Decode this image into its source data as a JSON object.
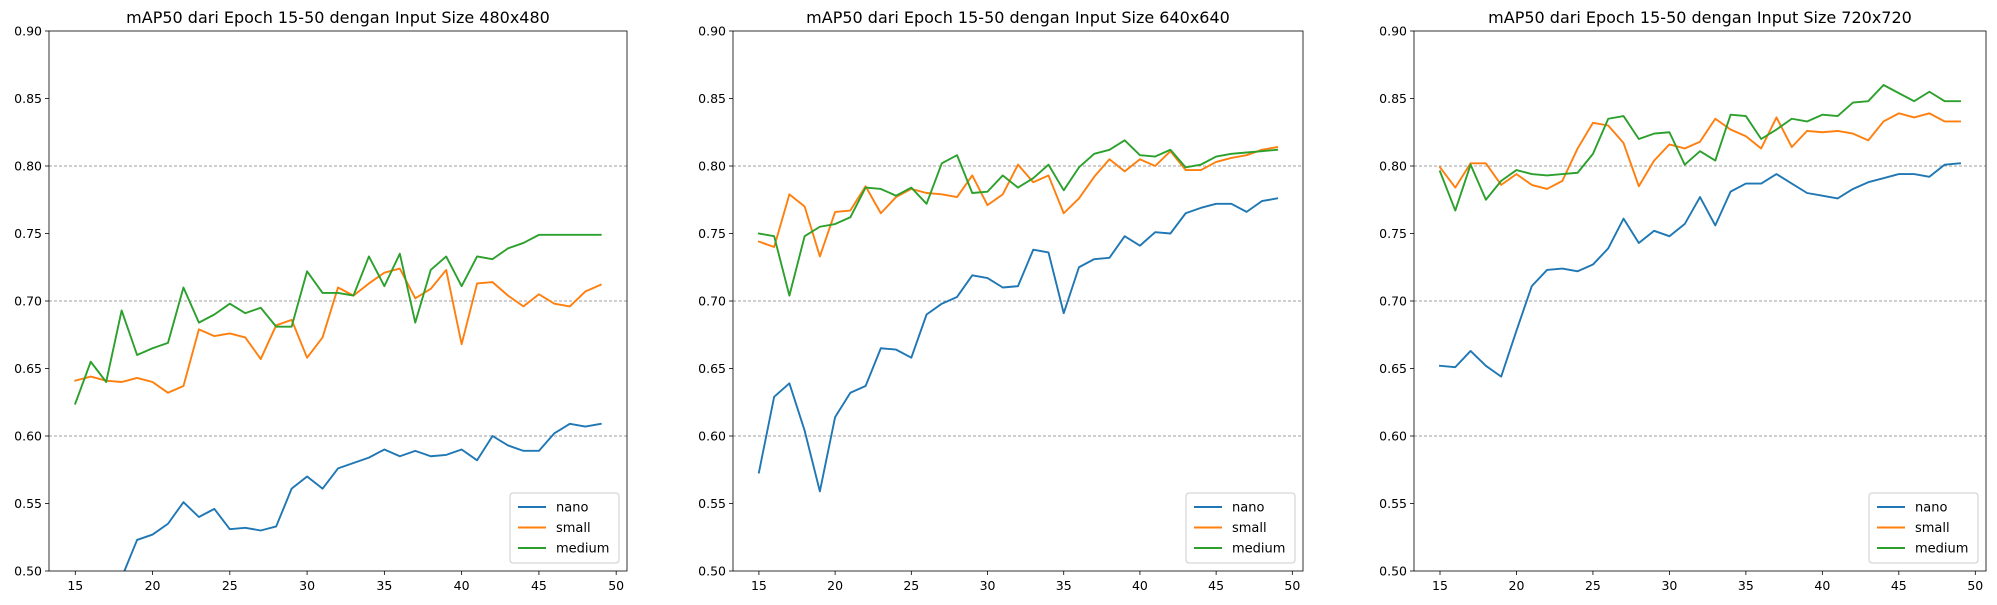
{
  "chart_data": [
    {
      "type": "line",
      "title": "mAP50 dari Epoch 15-50 dengan Input Size 480x480",
      "xlabel": "",
      "ylabel": "",
      "xlim": [
        13.3,
        50.7
      ],
      "ylim": [
        0.5,
        0.9
      ],
      "xticks": [
        "15",
        "20",
        "25",
        "30",
        "35",
        "40",
        "45",
        "50"
      ],
      "yticks": [
        "0.50",
        "0.55",
        "0.60",
        "0.65",
        "0.70",
        "0.75",
        "0.80",
        "0.85",
        "0.90"
      ],
      "grid": "horizontal dashed",
      "legend": "lower right",
      "x": [
        15,
        16,
        17,
        18,
        19,
        20,
        21,
        22,
        23,
        24,
        25,
        26,
        27,
        28,
        29,
        30,
        31,
        32,
        33,
        34,
        35,
        36,
        37,
        38,
        39,
        40,
        41,
        42,
        43,
        44,
        45,
        46,
        47,
        48,
        49
      ],
      "series": [
        {
          "name": "nano",
          "color": "#1f77b4",
          "values": [
            null,
            null,
            null,
            0.495,
            0.523,
            0.527,
            0.535,
            0.551,
            0.54,
            0.546,
            0.531,
            0.532,
            0.53,
            0.533,
            0.561,
            0.57,
            0.561,
            0.576,
            0.58,
            0.584,
            0.59,
            0.585,
            0.589,
            0.585,
            0.586,
            0.59,
            0.582,
            0.6,
            0.593,
            0.589,
            0.589,
            0.602,
            0.609,
            0.607,
            0.609
          ]
        },
        {
          "name": "small",
          "color": "#ff7f0e",
          "values": [
            0.641,
            0.644,
            0.641,
            0.64,
            0.643,
            0.64,
            0.632,
            0.637,
            0.679,
            0.674,
            0.676,
            0.673,
            0.657,
            0.682,
            0.686,
            0.658,
            0.673,
            0.71,
            0.704,
            0.713,
            0.721,
            0.724,
            0.702,
            0.709,
            0.723,
            0.668,
            0.713,
            0.714,
            0.704,
            0.696,
            0.705,
            0.698,
            0.696,
            0.707,
            0.712
          ]
        },
        {
          "name": "medium",
          "color": "#2ca02c",
          "values": [
            0.624,
            0.655,
            0.64,
            0.693,
            0.66,
            0.665,
            0.669,
            0.71,
            0.684,
            0.69,
            0.698,
            0.691,
            0.695,
            0.681,
            0.681,
            0.722,
            0.706,
            0.706,
            0.704,
            0.733,
            0.711,
            0.735,
            0.684,
            0.723,
            0.733,
            0.711,
            0.733,
            0.731,
            0.739,
            0.743,
            0.749,
            0.749,
            0.749,
            0.749,
            0.749
          ]
        }
      ]
    },
    {
      "type": "line",
      "title": "mAP50 dari Epoch 15-50 dengan Input Size 640x640",
      "xlabel": "",
      "ylabel": "",
      "xlim": [
        13.3,
        50.7
      ],
      "ylim": [
        0.5,
        0.9
      ],
      "xticks": [
        "15",
        "20",
        "25",
        "30",
        "35",
        "40",
        "45",
        "50"
      ],
      "yticks": [
        "0.50",
        "0.55",
        "0.60",
        "0.65",
        "0.70",
        "0.75",
        "0.80",
        "0.85",
        "0.90"
      ],
      "grid": "horizontal dashed",
      "legend": "lower right",
      "x": [
        15,
        16,
        17,
        18,
        19,
        20,
        21,
        22,
        23,
        24,
        25,
        26,
        27,
        28,
        29,
        30,
        31,
        32,
        33,
        34,
        35,
        36,
        37,
        38,
        39,
        40,
        41,
        42,
        43,
        44,
        45,
        46,
        47,
        48,
        49
      ],
      "series": [
        {
          "name": "nano",
          "color": "#1f77b4",
          "values": [
            0.573,
            0.629,
            0.639,
            0.604,
            0.559,
            0.614,
            0.632,
            0.637,
            0.665,
            0.664,
            0.658,
            0.69,
            0.698,
            0.703,
            0.719,
            0.717,
            0.71,
            0.711,
            0.738,
            0.736,
            0.691,
            0.725,
            0.731,
            0.732,
            0.748,
            0.741,
            0.751,
            0.75,
            0.765,
            0.769,
            0.772,
            0.772,
            0.766,
            0.774,
            0.776
          ]
        },
        {
          "name": "small",
          "color": "#ff7f0e",
          "values": [
            0.744,
            0.74,
            0.779,
            0.77,
            0.733,
            0.766,
            0.767,
            0.785,
            0.765,
            0.777,
            0.783,
            0.78,
            0.779,
            0.777,
            0.793,
            0.771,
            0.779,
            0.801,
            0.788,
            0.793,
            0.765,
            0.776,
            0.792,
            0.805,
            0.796,
            0.805,
            0.8,
            0.811,
            0.797,
            0.797,
            0.803,
            0.806,
            0.808,
            0.812,
            0.814
          ]
        },
        {
          "name": "medium",
          "color": "#2ca02c",
          "values": [
            0.75,
            0.748,
            0.704,
            0.748,
            0.755,
            0.757,
            0.762,
            0.784,
            0.783,
            0.778,
            0.784,
            0.772,
            0.802,
            0.808,
            0.78,
            0.781,
            0.793,
            0.784,
            0.791,
            0.801,
            0.782,
            0.799,
            0.809,
            0.812,
            0.819,
            0.808,
            0.807,
            0.812,
            0.799,
            0.801,
            0.807,
            0.809,
            0.81,
            0.811,
            0.812
          ]
        }
      ]
    },
    {
      "type": "line",
      "title": "mAP50 dari Epoch 15-50 dengan Input Size 720x720",
      "xlabel": "",
      "ylabel": "",
      "xlim": [
        13.3,
        50.7
      ],
      "ylim": [
        0.5,
        0.9
      ],
      "xticks": [
        "15",
        "20",
        "25",
        "30",
        "35",
        "40",
        "45",
        "50"
      ],
      "yticks": [
        "0.50",
        "0.55",
        "0.60",
        "0.65",
        "0.70",
        "0.75",
        "0.80",
        "0.85",
        "0.90"
      ],
      "grid": "horizontal dashed",
      "legend": "lower right",
      "x": [
        15,
        16,
        17,
        18,
        19,
        20,
        21,
        22,
        23,
        24,
        25,
        26,
        27,
        28,
        29,
        30,
        31,
        32,
        33,
        34,
        35,
        36,
        37,
        38,
        39,
        40,
        41,
        42,
        43,
        44,
        45,
        46,
        47,
        48,
        49
      ],
      "series": [
        {
          "name": "nano",
          "color": "#1f77b4",
          "values": [
            0.652,
            0.651,
            0.663,
            0.652,
            0.644,
            0.678,
            0.711,
            0.723,
            0.724,
            0.722,
            0.727,
            0.739,
            0.761,
            0.743,
            0.752,
            0.748,
            0.757,
            0.777,
            0.756,
            0.781,
            0.787,
            0.787,
            0.794,
            0.787,
            0.78,
            0.778,
            0.776,
            0.783,
            0.788,
            0.791,
            0.794,
            0.794,
            0.792,
            0.801,
            0.802
          ]
        },
        {
          "name": "small",
          "color": "#ff7f0e",
          "values": [
            0.799,
            0.784,
            0.802,
            0.802,
            0.786,
            0.794,
            0.786,
            0.783,
            0.789,
            0.813,
            0.832,
            0.83,
            0.817,
            0.785,
            0.804,
            0.816,
            0.813,
            0.818,
            0.835,
            0.827,
            0.822,
            0.813,
            0.836,
            0.814,
            0.826,
            0.825,
            0.826,
            0.824,
            0.819,
            0.833,
            0.839,
            0.836,
            0.839,
            0.833,
            0.833
          ]
        },
        {
          "name": "medium",
          "color": "#2ca02c",
          "values": [
            0.796,
            0.767,
            0.801,
            0.775,
            0.789,
            0.797,
            0.794,
            0.793,
            0.794,
            0.795,
            0.809,
            0.835,
            0.837,
            0.82,
            0.824,
            0.825,
            0.801,
            0.811,
            0.804,
            0.838,
            0.837,
            0.82,
            0.827,
            0.835,
            0.833,
            0.838,
            0.837,
            0.847,
            0.848,
            0.86,
            0.854,
            0.848,
            0.855,
            0.848,
            0.848
          ]
        }
      ]
    }
  ]
}
